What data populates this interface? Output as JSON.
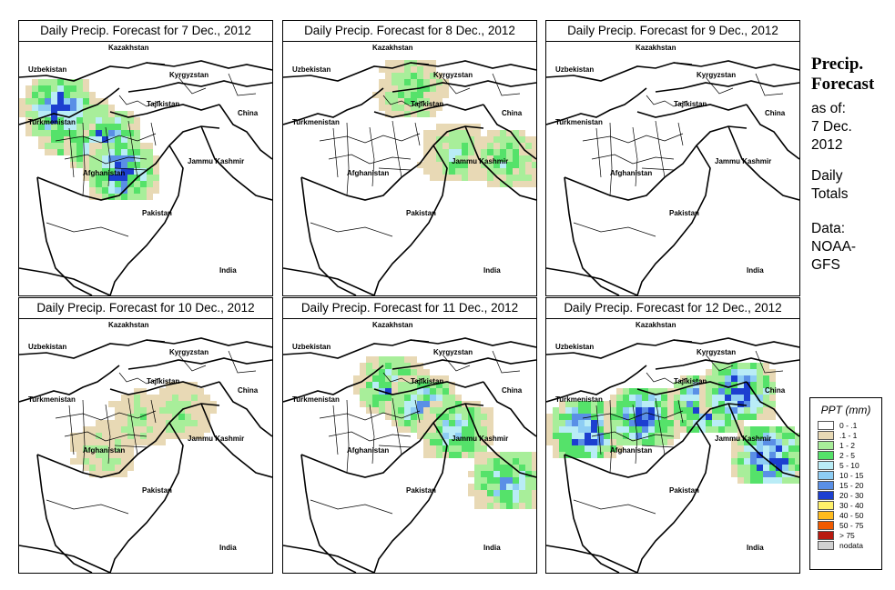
{
  "panels": [
    {
      "title": "Daily Precip. Forecast for  7 Dec., 2012",
      "rain_intensity": 0.9
    },
    {
      "title": "Daily Precip. Forecast for  8 Dec., 2012",
      "rain_intensity": 0.45
    },
    {
      "title": "Daily Precip. Forecast for  9 Dec., 2012",
      "rain_intensity": 0.0
    },
    {
      "title": "Daily Precip. Forecast for  10 Dec., 2012",
      "rain_intensity": 0.3
    },
    {
      "title": "Daily Precip. Forecast for  11 Dec., 2012",
      "rain_intensity": 0.7
    },
    {
      "title": "Daily Precip. Forecast for  12 Dec., 2012",
      "rain_intensity": 1.0
    }
  ],
  "map_labels": {
    "kazakhstan": "Kazakhstan",
    "uzbekistan": "Uzbekistan",
    "kyrgyzstan": "Kyrgyzstan",
    "tajikistan": "Tajikistan",
    "turkmenistan": "Turkmenistan",
    "china": "China",
    "afghanistan": "Afghanistan",
    "jammu_kashmir": "Jammu Kashmir",
    "pakistan": "Pakistan",
    "india": "India"
  },
  "side": {
    "title_line1": "Precip.",
    "title_line2": "Forecast",
    "asof_line1": "as of:",
    "asof_line2": "7 Dec.",
    "asof_line3": "2012",
    "daily_line1": "Daily",
    "daily_line2": "Totals",
    "source_line1": "Data:",
    "source_line2": "NOAA-",
    "source_line3": "GFS"
  },
  "legend": {
    "title": "PPT (mm)",
    "items": [
      {
        "label": "0 - .1",
        "color": "#ffffff"
      },
      {
        "label": ".1 - 1",
        "color": "#e8d9b5"
      },
      {
        "label": "1 - 2",
        "color": "#a8ee9a"
      },
      {
        "label": "2 - 5",
        "color": "#55e26a"
      },
      {
        "label": "5 - 10",
        "color": "#b9ecf6"
      },
      {
        "label": "10 - 15",
        "color": "#8ecdf4"
      },
      {
        "label": "15 - 20",
        "color": "#5a8fe6"
      },
      {
        "label": "20 - 30",
        "color": "#1c3fd0"
      },
      {
        "label": "30 - 40",
        "color": "#fff06a"
      },
      {
        "label": "40 - 50",
        "color": "#ffbb1e"
      },
      {
        "label": "50 - 75",
        "color": "#f05a00"
      },
      {
        "label": "> 75",
        "color": "#b81a10"
      },
      {
        "label": "nodata",
        "color": "#d0d0d0"
      }
    ]
  }
}
